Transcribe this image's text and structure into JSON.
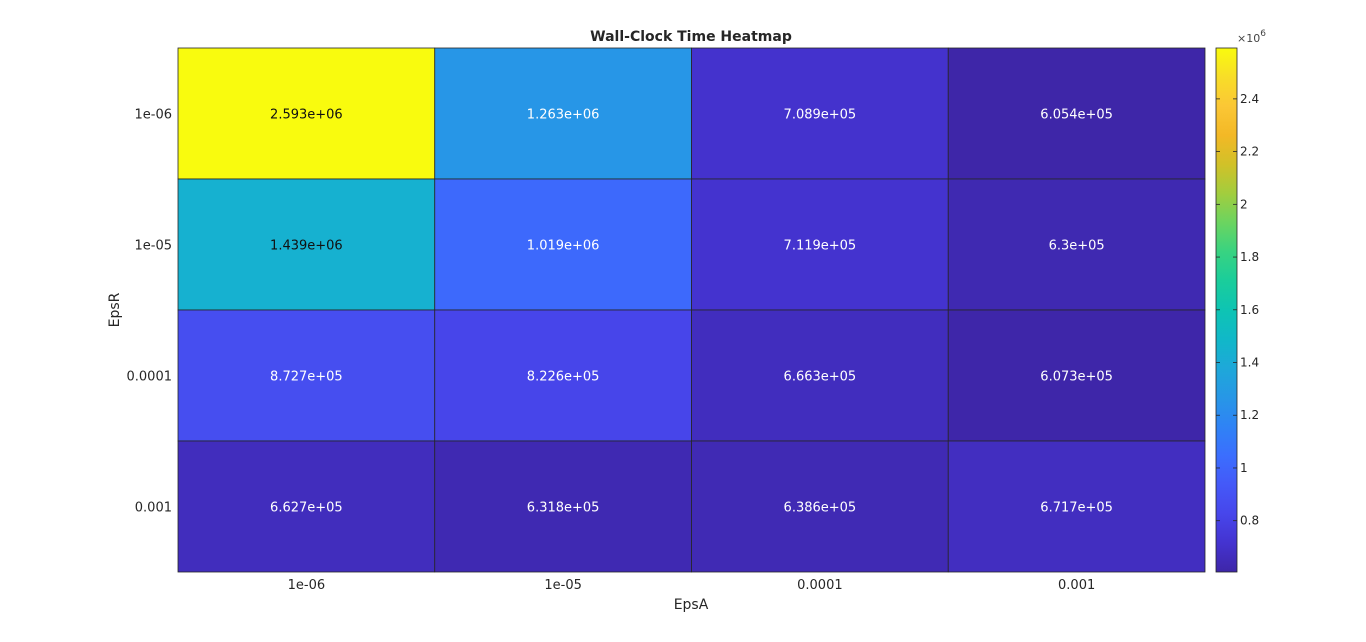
{
  "chart_data": {
    "type": "heatmap",
    "title": "Wall-Clock Time Heatmap",
    "xlabel": "EpsA",
    "ylabel": "EpsR",
    "x_categories": [
      "1e-06",
      "1e-05",
      "0.0001",
      "0.001"
    ],
    "y_categories": [
      "1e-06",
      "1e-05",
      "0.0001",
      "0.001"
    ],
    "values": [
      [
        2593000,
        1263000,
        708900,
        605400
      ],
      [
        1439000,
        1019000,
        711900,
        630000
      ],
      [
        872700,
        822600,
        666300,
        607300
      ],
      [
        662700,
        631800,
        638600,
        671700
      ]
    ],
    "cell_labels": [
      [
        "2.593e+06",
        "1.263e+06",
        "7.089e+05",
        "6.054e+05"
      ],
      [
        "1.439e+06",
        "1.019e+06",
        "7.119e+05",
        "6.3e+05"
      ],
      [
        "8.727e+05",
        "8.226e+05",
        "6.663e+05",
        "6.073e+05"
      ],
      [
        "6.627e+05",
        "6.318e+05",
        "6.386e+05",
        "6.717e+05"
      ]
    ],
    "colormap": "parula",
    "colorbar": {
      "range": [
        605400,
        2593000
      ],
      "ticks": [
        0.8,
        1,
        1.2,
        1.4,
        1.6,
        1.8,
        2,
        2.2,
        2.4
      ],
      "tick_labels": [
        "0.8",
        "1",
        "1.2",
        "1.4",
        "1.6",
        "1.8",
        "2",
        "2.2",
        "2.4"
      ],
      "multiplier_base": "×10",
      "multiplier_exponent": "6"
    },
    "grid": false,
    "legend": "none"
  }
}
